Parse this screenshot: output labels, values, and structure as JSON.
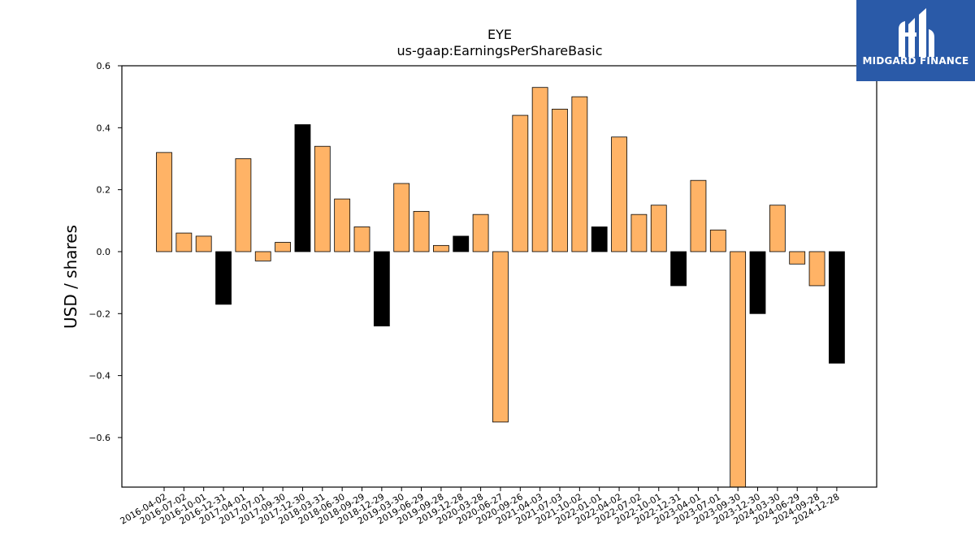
{
  "brand": {
    "name": "MIDGARD FINANCE",
    "color": "#2a5aa8"
  },
  "chart_data": {
    "type": "bar",
    "title": "EYE",
    "subtitle": "us-gaap:EarningsPerShareBasic",
    "xlabel": "",
    "ylabel": "USD / shares",
    "ylim": [
      -0.76,
      0.6
    ],
    "yticks": [
      0.6,
      0.4,
      0.2,
      0.0,
      -0.2,
      -0.4,
      -0.6
    ],
    "ytick_labels": [
      "0.6",
      "0.4",
      "0.2",
      "0.0",
      "−0.2",
      "−0.4",
      "−0.6"
    ],
    "grid": false,
    "colors": {
      "quarter": "#ffb366",
      "annual_residual": "#000000",
      "edge": "#000000"
    },
    "categories": [
      "2016-04-02",
      "2016-07-02",
      "2016-10-01",
      "2016-12-31",
      "2017-04-01",
      "2017-07-01",
      "2017-09-30",
      "2017-12-30",
      "2018-03-31",
      "2018-06-30",
      "2018-09-29",
      "2018-12-29",
      "2019-03-30",
      "2019-06-29",
      "2019-09-28",
      "2019-12-28",
      "2020-03-28",
      "2020-06-27",
      "2020-09-26",
      "2021-04-03",
      "2021-07-03",
      "2021-10-02",
      "2022-01-01",
      "2022-04-02",
      "2022-07-02",
      "2022-10-01",
      "2022-12-31",
      "2023-04-01",
      "2023-07-01",
      "2023-09-30",
      "2023-12-30",
      "2024-03-30",
      "2024-06-29",
      "2024-09-28",
      "2024-12-28"
    ],
    "values": [
      0.32,
      0.06,
      0.05,
      -0.17,
      0.3,
      -0.03,
      0.03,
      0.41,
      0.34,
      0.17,
      0.08,
      -0.24,
      0.22,
      0.13,
      0.02,
      0.05,
      0.12,
      -0.55,
      0.44,
      0.53,
      0.46,
      0.5,
      0.08,
      0.37,
      0.12,
      0.15,
      -0.11,
      0.23,
      0.07,
      -0.76,
      -0.2,
      0.15,
      -0.04,
      -0.11,
      -0.36
    ],
    "bar_kind": [
      "q",
      "q",
      "q",
      "a",
      "q",
      "q",
      "q",
      "a",
      "q",
      "q",
      "q",
      "a",
      "q",
      "q",
      "q",
      "a",
      "q",
      "q",
      "q",
      "q",
      "q",
      "q",
      "a",
      "q",
      "q",
      "q",
      "a",
      "q",
      "q",
      "q",
      "a",
      "q",
      "q",
      "q",
      "a"
    ]
  }
}
